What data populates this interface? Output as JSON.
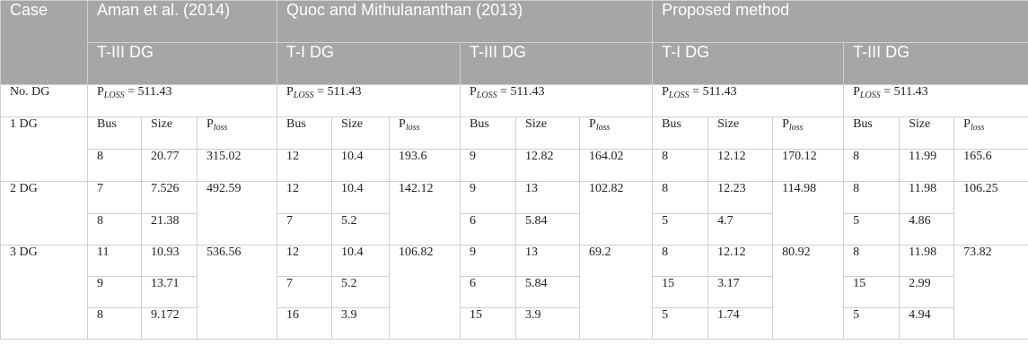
{
  "header": {
    "case": "Case",
    "groups": [
      "Aman et al. (2014)",
      "Quoc and Mithulananthan (2013)",
      "Proposed method"
    ],
    "dg_types": [
      "T-III DG",
      "T-I DG",
      "T-III DG",
      "T-I DG",
      "T-III DG"
    ]
  },
  "no_dg": {
    "label": "No. DG",
    "ploss_main": "P",
    "ploss_sub": "LOSS",
    "ploss_value": " = 511.43"
  },
  "subheader": {
    "bus": "Bus",
    "size": "Size",
    "ploss_main": "P",
    "ploss_sub": "loss"
  },
  "rows": {
    "dg1": {
      "label": "1 DG",
      "bus": [
        "8",
        "12",
        "9",
        "8",
        "8"
      ],
      "size": [
        "20.77",
        "10.4",
        "12.82",
        "12.12",
        "11.99"
      ],
      "ploss": [
        "315.02",
        "193.6",
        "164.02",
        "170.12",
        "165.6"
      ]
    },
    "dg2": {
      "label": "2 DG",
      "bus": [
        [
          "7",
          "8"
        ],
        [
          "12",
          "7"
        ],
        [
          "9",
          "6"
        ],
        [
          "8",
          "5"
        ],
        [
          "8",
          "5"
        ]
      ],
      "size": [
        [
          "7.526",
          "21.38"
        ],
        [
          "10.4",
          "5.2"
        ],
        [
          "13",
          "5.84"
        ],
        [
          "12.23",
          "4.7"
        ],
        [
          "11.98",
          "4.86"
        ]
      ],
      "ploss": [
        "492.59",
        "142.12",
        "102.82",
        "114.98",
        "106.25"
      ]
    },
    "dg3": {
      "label": "3 DG",
      "bus": [
        [
          "11",
          "9",
          "8"
        ],
        [
          "12",
          "7",
          "16"
        ],
        [
          "9",
          "6",
          "15"
        ],
        [
          "8",
          "15",
          "5"
        ],
        [
          "8",
          "15",
          "5"
        ]
      ],
      "size": [
        [
          "10.93",
          "13.71",
          "9.172"
        ],
        [
          "10.4",
          "5.2",
          "3.9"
        ],
        [
          "13",
          "5.84",
          "3.9"
        ],
        [
          "12.12",
          "3.17",
          "1.74"
        ],
        [
          "11.98",
          "2.99",
          "4.94"
        ]
      ],
      "ploss": [
        "536.56",
        "106.82",
        "69.2",
        "80.92",
        "73.82"
      ]
    }
  }
}
